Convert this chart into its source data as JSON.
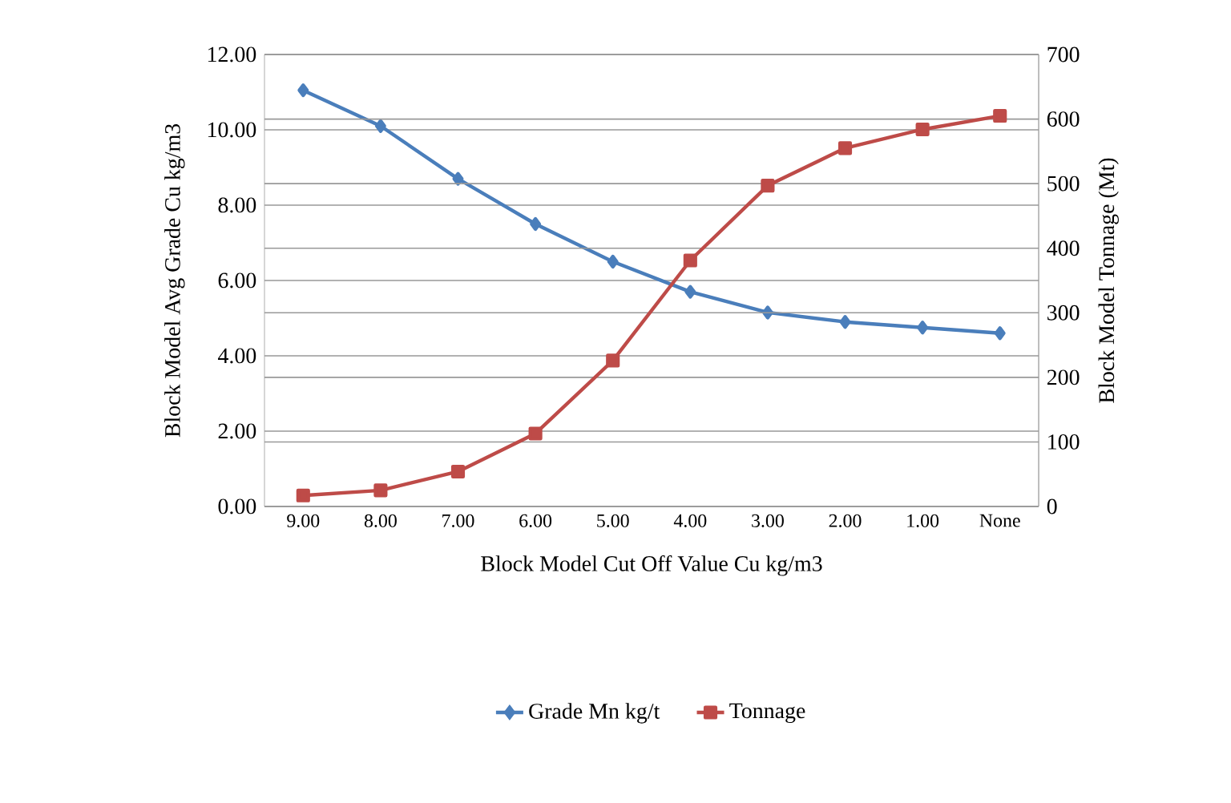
{
  "chart_data": {
    "type": "line",
    "xlabel": "Block Model Cut Off Value  Cu kg/m3",
    "ylabel": "Block Model Avg  Grade Cu kg/m3",
    "y2label": "Block Model Tonnage (Mt)",
    "categories": [
      "9.00",
      "8.00",
      "7.00",
      "6.00",
      "5.00",
      "4.00",
      "3.00",
      "2.00",
      "1.00",
      "None"
    ],
    "series": [
      {
        "name": "Grade Mn kg/t",
        "color": "#4a7ebb",
        "marker": "diamond",
        "values": [
          11.05,
          10.1,
          8.7,
          7.5,
          6.5,
          5.7,
          5.15,
          4.9,
          4.75,
          4.6
        ]
      },
      {
        "name": "Tonnage",
        "color": "#be4b48",
        "marker": "square",
        "axis": "y2",
        "values": [
          17,
          25,
          54,
          113,
          226,
          381,
          497,
          555,
          584,
          605
        ]
      }
    ],
    "ylim": [
      0,
      12
    ],
    "yticks": [
      {
        "value": 0,
        "label": "0.00"
      },
      {
        "value": 2,
        "label": "2.00"
      },
      {
        "value": 4,
        "label": "4.00"
      },
      {
        "value": 6,
        "label": "6.00"
      },
      {
        "value": 8,
        "label": "8.00"
      },
      {
        "value": 10,
        "label": "10.00"
      },
      {
        "value": 12,
        "label": "12.00"
      }
    ],
    "y2lim": [
      0,
      700
    ],
    "y2ticks": [
      0,
      100,
      200,
      300,
      400,
      500,
      600,
      700
    ],
    "grid": true,
    "legend": "bottom",
    "line_style": "solid"
  }
}
